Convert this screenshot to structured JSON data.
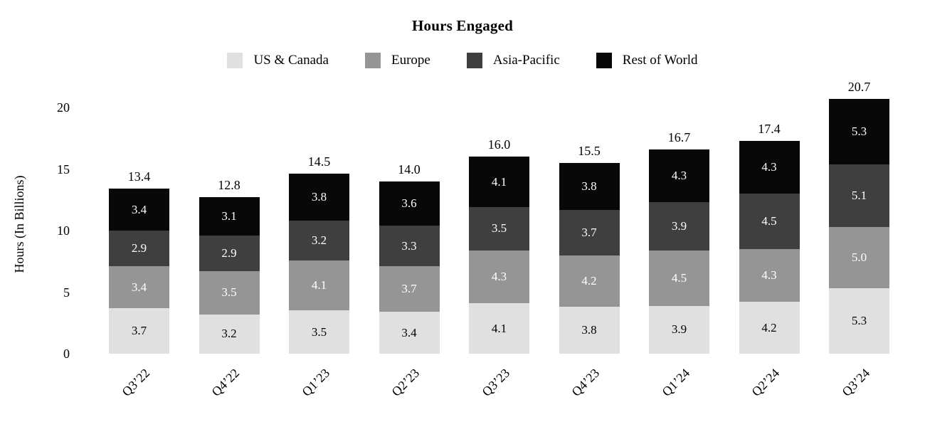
{
  "chart_data": {
    "type": "bar",
    "stacked": true,
    "title": "Hours Engaged",
    "ylabel": "Hours (In Billions)",
    "xlabel": "",
    "ylim": [
      0,
      20
    ],
    "y_ticks": [
      0,
      5,
      10,
      15,
      20
    ],
    "grid": false,
    "legend_position": "top",
    "categories": [
      "Q3’22",
      "Q4’22",
      "Q1’23",
      "Q2’23",
      "Q3’23",
      "Q4’23",
      "Q1’24",
      "Q2’24",
      "Q3’24"
    ],
    "series": [
      {
        "name": "US & Canada",
        "color": "#e0e0e0",
        "label_color": "#000000",
        "values": [
          3.7,
          3.2,
          3.5,
          3.4,
          4.1,
          3.8,
          3.9,
          4.2,
          5.3
        ]
      },
      {
        "name": "Europe",
        "color": "#959595",
        "label_color": "#ffffff",
        "values": [
          3.4,
          3.5,
          4.1,
          3.7,
          4.3,
          4.2,
          4.5,
          4.3,
          5.0
        ]
      },
      {
        "name": "Asia-Pacific",
        "color": "#3f3f3f",
        "label_color": "#ffffff",
        "values": [
          2.9,
          2.9,
          3.2,
          3.3,
          3.5,
          3.7,
          3.9,
          4.5,
          5.1
        ]
      },
      {
        "name": "Rest of World",
        "color": "#080808",
        "label_color": "#ffffff",
        "values": [
          3.4,
          3.1,
          3.8,
          3.6,
          4.1,
          3.8,
          4.3,
          4.3,
          5.3
        ]
      }
    ],
    "totals": [
      "13.4",
      "12.8",
      "14.5",
      "14.0",
      "16.0",
      "15.5",
      "16.7",
      "17.4",
      "20.7"
    ]
  }
}
